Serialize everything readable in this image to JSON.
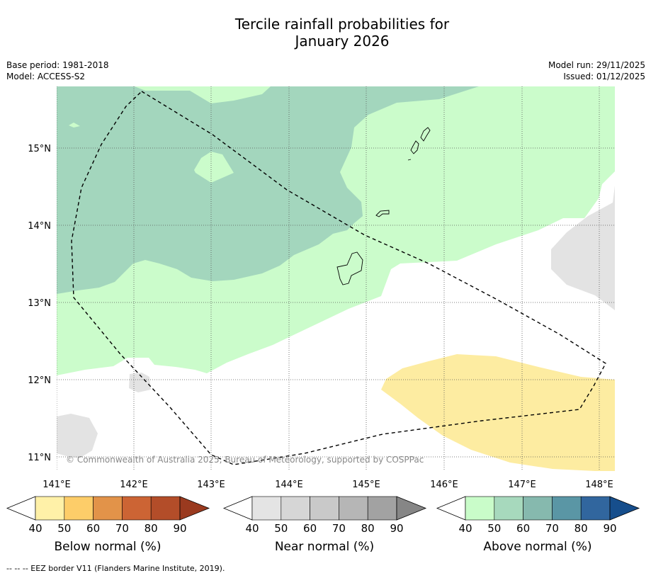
{
  "title_line1": "Tercile rainfall probabilities for",
  "title_line2": "January 2026",
  "base_period": "Base period: 1981-2018",
  "model": "Model: ACCESS-S2",
  "model_run": "Model run: 29/11/2025",
  "issued": "Issued: 01/12/2025",
  "map": {
    "lat_labels": [
      "15°N",
      "14°N",
      "13°N",
      "12°N",
      "11°N"
    ],
    "lon_labels": [
      "141°E",
      "142°E",
      "143°E",
      "144°E",
      "145°E",
      "146°E",
      "147°E",
      "148°E"
    ],
    "copyright": "© Commonwealth of Australia 2025, Bureau of Meteorology, supported by COSPPac",
    "colors": {
      "above_50": "#a3d6bd",
      "above_40": "#cbfccb",
      "below_40": "#fdeca1",
      "near_40": "#e3e3e3",
      "border": "#000000"
    }
  },
  "colorbars": [
    {
      "title": "Below normal (%)",
      "ticks": [
        "40",
        "50",
        "60",
        "70",
        "80",
        "90"
      ],
      "colors": [
        "#ffffff",
        "#fff1a8",
        "#fdcd69",
        "#e29349",
        "#cc6434",
        "#b34d29",
        "#9a3a1f"
      ]
    },
    {
      "title": "Near normal (%)",
      "ticks": [
        "40",
        "50",
        "60",
        "70",
        "80",
        "90"
      ],
      "colors": [
        "#ffffff",
        "#e4e4e4",
        "#d6d6d6",
        "#c9c9c9",
        "#b6b6b6",
        "#a2a2a2",
        "#868686"
      ]
    },
    {
      "title": "Above normal (%)",
      "ticks": [
        "40",
        "50",
        "60",
        "70",
        "80",
        "90"
      ],
      "colors": [
        "#ffffff",
        "#c9fcc9",
        "#a7d9bd",
        "#86b9ae",
        "#5a96a5",
        "#31669e",
        "#164e8c"
      ]
    }
  ],
  "footnote": "--  --  -- EEZ border V11 (Flanders Marine Institute, 2019)."
}
